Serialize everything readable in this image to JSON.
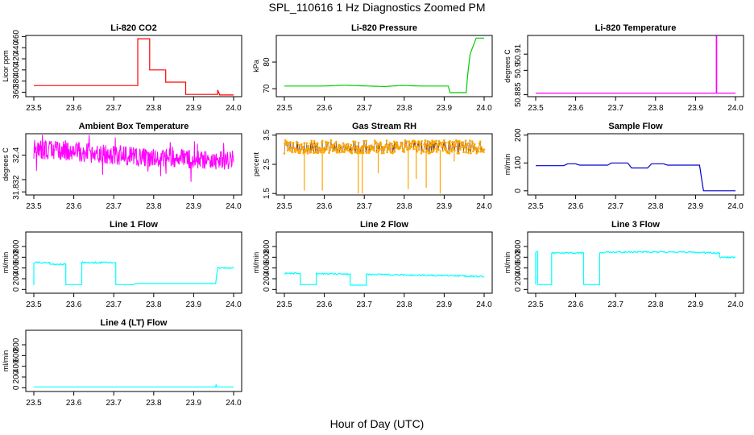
{
  "page": {
    "title": "SPL_110616  1 Hz Diagnostics Zoomed PM",
    "xlabel": "Hour of Day (UTC)"
  },
  "chart_data": [
    {
      "id": "co2",
      "type": "line",
      "title": "Li-820 CO2",
      "ylabel": "Licor ppm",
      "color": "#ff0000",
      "xlim": [
        23.5,
        24.0
      ],
      "xticks": [
        23.5,
        23.6,
        23.7,
        23.8,
        23.9,
        24.0
      ],
      "ylim": [
        352,
        462
      ],
      "yticks": [
        360,
        380,
        400,
        420,
        440,
        460
      ],
      "x": [
        23.5,
        23.76,
        23.76,
        23.79,
        23.79,
        23.83,
        23.83,
        23.88,
        23.88,
        23.96,
        23.96,
        23.965,
        23.965,
        24.0
      ],
      "y": [
        372,
        372,
        456,
        456,
        400,
        400,
        378,
        378,
        356,
        356,
        364,
        356,
        355,
        355
      ]
    },
    {
      "id": "pressure",
      "type": "line",
      "title": "Li-820 Pressure",
      "ylabel": "kPa",
      "color": "#00cc00",
      "xlim": [
        23.5,
        24.0
      ],
      "xticks": [
        23.5,
        23.6,
        23.7,
        23.8,
        23.9,
        24.0
      ],
      "ylim": [
        67,
        90
      ],
      "yticks": [
        70,
        80
      ],
      "x": [
        23.5,
        23.6,
        23.65,
        23.75,
        23.79,
        23.8,
        23.84,
        23.91,
        23.915,
        23.955,
        23.96,
        23.965,
        23.975,
        23.98,
        24.0
      ],
      "y": [
        71,
        71,
        71.3,
        70.8,
        71.2,
        71.2,
        71,
        71,
        68.5,
        68.5,
        77,
        83,
        87,
        89,
        89
      ]
    },
    {
      "id": "licor_temp",
      "type": "line",
      "title": "Li-820 Temperature",
      "ylabel": "degrees C",
      "color": "#ff00ff",
      "xlim": [
        23.5,
        24.0
      ],
      "xticks": [
        23.5,
        23.6,
        23.7,
        23.8,
        23.9,
        24.0
      ],
      "ylim": [
        50.8838,
        50.9215
      ],
      "yticks": [
        50.885,
        50.9,
        50.91
      ],
      "x": [
        23.5,
        23.952,
        23.952,
        23.953,
        23.953,
        24.0
      ],
      "y": [
        50.886,
        50.886,
        50.921,
        50.921,
        50.886,
        50.886
      ]
    },
    {
      "id": "box_temp",
      "type": "line",
      "title": "Ambient Box Temperature",
      "ylabel": "degrees C",
      "color": "#ff00ff",
      "xlim": [
        23.5,
        24.0
      ],
      "xticks": [
        23.5,
        23.6,
        23.7,
        23.8,
        23.9,
        24.0
      ],
      "ylim": [
        31.75,
        32.75
      ],
      "yticks": [
        31.8,
        32.0,
        32.4
      ],
      "x": [
        23.5,
        23.6,
        23.7,
        23.8,
        23.9,
        24.0
      ],
      "y": [
        32.5,
        32.46,
        32.4,
        32.36,
        32.33,
        32.32
      ]
    },
    {
      "id": "rh",
      "type": "scatter",
      "title": "Gas Stream RH",
      "ylabel": "percent",
      "color": "#ffa500",
      "xlim": [
        23.5,
        24.0
      ],
      "xticks": [
        23.5,
        23.6,
        23.7,
        23.8,
        23.9,
        24.0
      ],
      "ylim": [
        1.45,
        3.55
      ],
      "yticks": [
        1.5,
        2.5,
        3.5
      ],
      "x": [
        23.5,
        23.6,
        23.7,
        23.8,
        23.9,
        24.0
      ],
      "y": [
        3.1,
        3.1,
        3.1,
        3.1,
        3.1,
        3.1
      ]
    },
    {
      "id": "sample_flow",
      "type": "line",
      "title": "Sample Flow",
      "ylabel": "ml/min",
      "color": "#0000cc",
      "xlim": [
        23.5,
        24.0
      ],
      "xticks": [
        23.5,
        23.6,
        23.7,
        23.8,
        23.9,
        24.0
      ],
      "ylim": [
        -15,
        205
      ],
      "yticks": [
        0,
        100,
        200
      ],
      "x": [
        23.5,
        23.57,
        23.58,
        23.6,
        23.61,
        23.68,
        23.69,
        23.73,
        23.74,
        23.78,
        23.79,
        23.82,
        23.83,
        23.91,
        23.92,
        24.0
      ],
      "y": [
        90,
        90,
        97,
        97,
        92,
        92,
        100,
        100,
        82,
        82,
        97,
        97,
        92,
        92,
        0,
        0
      ]
    },
    {
      "id": "line1",
      "type": "line",
      "title": "Line 1 Flow",
      "ylabel": "ml/min",
      "color": "#00ffff",
      "xlim": [
        23.5,
        24.0
      ],
      "xticks": [
        23.5,
        23.6,
        23.7,
        23.8,
        23.9,
        24.0
      ],
      "ylim": [
        -70,
        1070
      ],
      "yticks": [
        0,
        200,
        400,
        600,
        800
      ],
      "x": [
        23.5,
        23.5,
        23.54,
        23.54,
        23.58,
        23.58,
        23.62,
        23.62,
        23.705,
        23.705,
        23.75,
        23.755,
        23.955,
        23.96,
        24.0
      ],
      "y": [
        80,
        500,
        500,
        470,
        470,
        90,
        90,
        500,
        500,
        90,
        90,
        110,
        110,
        400,
        400
      ]
    },
    {
      "id": "line2",
      "type": "line",
      "title": "Line 2 Flow",
      "ylabel": "ml/min",
      "color": "#00ffff",
      "xlim": [
        23.5,
        24.0
      ],
      "xticks": [
        23.5,
        23.6,
        23.7,
        23.8,
        23.9,
        24.0
      ],
      "ylim": [
        -70,
        1070
      ],
      "yticks": [
        0,
        200,
        400,
        600,
        800
      ],
      "x": [
        23.5,
        23.54,
        23.54,
        23.58,
        23.58,
        23.665,
        23.665,
        23.705,
        23.705,
        23.8,
        23.9,
        24.0
      ],
      "y": [
        300,
        300,
        90,
        90,
        290,
        290,
        80,
        80,
        280,
        270,
        260,
        240
      ]
    },
    {
      "id": "line3",
      "type": "line",
      "title": "Line 3 Flow",
      "ylabel": "ml/min",
      "color": "#00ffff",
      "xlim": [
        23.5,
        24.0
      ],
      "xticks": [
        23.5,
        23.6,
        23.7,
        23.8,
        23.9,
        24.0
      ],
      "ylim": [
        -70,
        1070
      ],
      "yticks": [
        0,
        200,
        400,
        600,
        800
      ],
      "x": [
        23.5,
        23.5,
        23.505,
        23.505,
        23.54,
        23.54,
        23.62,
        23.62,
        23.66,
        23.66,
        23.8,
        23.9,
        23.96,
        23.96,
        24.0
      ],
      "y": [
        90,
        700,
        700,
        90,
        90,
        680,
        680,
        90,
        90,
        690,
        700,
        690,
        680,
        600,
        600
      ]
    },
    {
      "id": "line4",
      "type": "line",
      "title": "Line 4 (LT) Flow",
      "ylabel": "ml/min",
      "color": "#00ffff",
      "xlim": [
        23.5,
        24.0
      ],
      "xticks": [
        23.5,
        23.6,
        23.7,
        23.8,
        23.9,
        24.0
      ],
      "ylim": [
        -70,
        1070
      ],
      "yticks": [
        0,
        200,
        400,
        600,
        800
      ],
      "x": [
        23.5,
        23.955,
        23.956,
        23.958,
        24.0
      ],
      "y": [
        15,
        15,
        60,
        15,
        15
      ]
    }
  ]
}
